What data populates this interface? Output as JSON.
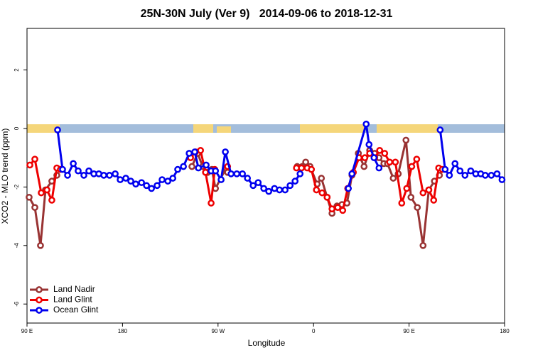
{
  "chart_data": {
    "type": "line",
    "title": "25N-30N July (Ver 9)   2014-09-06 to 2018-12-31",
    "x_label": "Longitude",
    "y_label": "XCO2 - MLO trend (ppm)",
    "xlim": [
      90,
      540
    ],
    "ylim": [
      -6.65,
      3.42
    ],
    "xticks": [
      {
        "value": 90,
        "label": "90 E"
      },
      180,
      {
        "value": 270,
        "label": "90 W"
      },
      {
        "value": 360,
        "label": "0"
      },
      {
        "value": 450,
        "label": "90 E"
      },
      {
        "value": 540,
        "label": "180"
      }
    ],
    "yticks": [
      -6,
      -4,
      -2,
      0,
      2
    ],
    "legend": "bottom-left",
    "series": [
      {
        "name": "Land Nadir",
        "color": "#993333",
        "x": [
          92.0,
          97.4,
          102.7,
          107.4,
          113.4,
          118.1,
          null,
          245.4,
          250.8,
          255.5,
          260.2,
          264.2,
          267.6,
          277.6,
          279.0,
          null,
          344.6,
          349.3,
          352.6,
          356.7,
          363.4,
          367.4,
          372.8,
          377.4,
          382.1,
          386.8,
          391.5,
          396.2,
          402.2,
          407.6,
          412.9,
          417.6,
          421.7,
          426.3,
          429.7,
          435.1,
          439.8,
          447.1,
          451.8,
          457.8,
          463.2,
          468.6,
          473.9,
          478.6
        ],
        "values": [
          -2.35,
          -2.7,
          -4.0,
          -2.1,
          -1.8,
          -1.6,
          null,
          -1.3,
          -0.85,
          -1.3,
          -1.5,
          -1.4,
          -2.05,
          -1.35,
          -1.5,
          null,
          -1.3,
          -1.3,
          -1.15,
          -1.3,
          -1.9,
          -1.7,
          -2.35,
          -2.9,
          -2.65,
          -2.6,
          -2.55,
          -1.6,
          -0.85,
          -1.3,
          -0.75,
          -0.85,
          -1.0,
          -1.2,
          -1.2,
          -1.7,
          -1.55,
          -0.4,
          -2.35,
          -2.7,
          -4.0,
          -2.1,
          -1.8,
          -1.6
        ]
      },
      {
        "name": "Land Glint",
        "color": "#ee0000",
        "x": [
          92.7,
          97.4,
          103.4,
          108.8,
          113.4,
          118.1,
          121.5,
          null,
          244.1,
          248.8,
          253.5,
          258.2,
          263.5,
          266.9,
          null,
          279.0,
          null,
          343.9,
          348.6,
          354.0,
          358.0,
          362.7,
          368.1,
          372.8,
          377.4,
          382.8,
          387.5,
          392.2,
          397.5,
          402.9,
          408.3,
          412.9,
          417.6,
          422.3,
          427.0,
          431.7,
          437.1,
          443.1,
          447.8,
          452.5,
          457.2,
          463.2,
          468.6,
          473.2,
          477.9,
          481.3
        ],
        "values": [
          -1.25,
          -1.05,
          -2.2,
          -2.1,
          -2.45,
          -1.35,
          -1.4,
          null,
          -1.0,
          -0.8,
          -0.75,
          -1.5,
          -2.55,
          -1.4,
          null,
          -1.3,
          null,
          -1.35,
          -1.35,
          -1.35,
          -1.4,
          -2.1,
          -2.2,
          -2.35,
          -2.75,
          -2.7,
          -2.8,
          -2.05,
          -1.5,
          -1.0,
          -1.0,
          -0.85,
          -1.0,
          -0.75,
          -0.85,
          -1.15,
          -1.15,
          -2.55,
          -2.05,
          -1.3,
          -1.05,
          -2.2,
          -2.1,
          -2.45,
          -1.35,
          -1.4
        ]
      },
      {
        "name": "Ocean Glint",
        "color": "#0000ee",
        "x": [
          118.8,
          123.5,
          128.2,
          133.6,
          138.2,
          143.6,
          148.3,
          153.0,
          157.7,
          162.4,
          167.7,
          173.1,
          177.8,
          183.1,
          187.8,
          192.5,
          197.9,
          202.6,
          207.3,
          212.6,
          217.3,
          222.7,
          227.4,
          232.0,
          237.4,
          242.8,
          248.1,
          251.5,
          258.8,
          263.5,
          267.6,
          272.9,
          276.9,
          282.3,
          287.7,
          293.0,
          297.7,
          303.1,
          307.8,
          313.1,
          317.8,
          323.2,
          327.9,
          333.2,
          337.9,
          342.6,
          347.3,
          null,
          392.8,
          396.2,
          409.6,
          412.3,
          417.0,
          421.7,
          null,
          479.3,
          484.0,
          488.0,
          493.3,
          498.0,
          502.7,
          508.1,
          512.8,
          517.5,
          521.8,
          527.5,
          532.9,
          537.6
        ],
        "values": [
          -0.05,
          -1.4,
          -1.6,
          -1.2,
          -1.45,
          -1.6,
          -1.45,
          -1.55,
          -1.55,
          -1.6,
          -1.6,
          -1.55,
          -1.75,
          -1.7,
          -1.8,
          -1.9,
          -1.85,
          -1.95,
          -2.05,
          -1.95,
          -1.75,
          -1.8,
          -1.7,
          -1.4,
          -1.3,
          -0.85,
          -0.8,
          -1.35,
          -1.25,
          -1.45,
          -1.45,
          -1.75,
          -0.8,
          -1.55,
          -1.55,
          -1.55,
          -1.7,
          -1.95,
          -1.85,
          -2.05,
          -2.15,
          -2.05,
          -2.1,
          -2.1,
          -1.95,
          -1.8,
          -1.55,
          null,
          -2.05,
          -1.55,
          0.15,
          -0.55,
          -1.0,
          -1.35,
          null,
          -0.05,
          -1.4,
          -1.6,
          -1.2,
          -1.45,
          -1.6,
          -1.45,
          -1.55,
          -1.55,
          -1.6,
          -1.6,
          -1.55,
          -1.75
        ]
      }
    ]
  }
}
